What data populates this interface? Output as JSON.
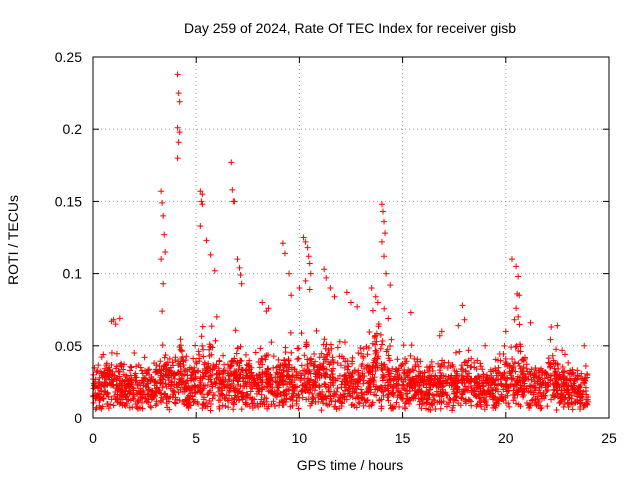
{
  "chart_data": {
    "type": "scatter",
    "title": "Day 259 of 2024, Rate Of TEC Index for receiver gisb",
    "xlabel": "GPS time / hours",
    "ylabel": "ROTI / TECUs",
    "xlim": [
      0,
      25
    ],
    "ylim": [
      0,
      0.25
    ],
    "x_ticks": [
      0,
      5,
      10,
      15,
      20,
      25
    ],
    "x_tick_labels": [
      "0",
      "5",
      "10",
      "15",
      "20",
      "25"
    ],
    "y_ticks": [
      0,
      0.05,
      0.1,
      0.15,
      0.2,
      0.25
    ],
    "y_tick_labels": [
      "0",
      "0.05",
      "0.1",
      "0.15",
      "0.2",
      "0.25"
    ],
    "grid": true,
    "marker": "+",
    "color": "#ff0000",
    "background_band": {
      "x_range": [
        0,
        24
      ],
      "baseline_range": [
        0.005,
        0.03
      ],
      "approx_points": 2600,
      "description": "dense continuous cloud of ROTI samples"
    },
    "series": [
      {
        "name": "ROTI",
        "x": [
          0.9,
          1.0,
          1.1,
          1.3,
          3.3,
          3.35,
          3.4,
          3.45,
          3.5,
          3.3,
          3.4,
          3.35,
          4.1,
          4.15,
          4.2,
          4.1,
          4.2,
          4.15,
          4.1,
          5.2,
          5.3,
          5.25,
          5.3,
          5.2,
          5.5,
          5.7,
          5.9,
          6.0,
          6.7,
          6.75,
          6.8,
          6.85,
          7.0,
          7.1,
          7.15,
          7.2,
          8.2,
          8.4,
          8.5,
          9.2,
          9.3,
          9.5,
          9.6,
          10.0,
          10.2,
          10.3,
          10.4,
          10.45,
          10.5,
          10.55,
          10.3,
          10.5,
          11.2,
          11.3,
          11.5,
          11.7,
          12.3,
          12.5,
          12.8,
          13.5,
          13.7,
          13.8,
          14.0,
          14.05,
          14.1,
          14.15,
          14.0,
          14.1,
          14.2,
          14.4,
          15.4,
          16.8,
          16.9,
          17.7,
          17.9,
          18.0,
          19.0,
          20.0,
          20.3,
          20.5,
          20.6,
          20.55,
          20.65,
          20.5,
          20.6,
          21.2,
          22.2,
          22.5,
          23.8,
          2.0,
          2.5,
          0.5
        ],
        "y": [
          0.067,
          0.068,
          0.065,
          0.069,
          0.157,
          0.149,
          0.14,
          0.127,
          0.115,
          0.11,
          0.093,
          0.074,
          0.238,
          0.225,
          0.219,
          0.201,
          0.198,
          0.191,
          0.18,
          0.157,
          0.155,
          0.15,
          0.148,
          0.133,
          0.123,
          0.113,
          0.102,
          0.07,
          0.177,
          0.158,
          0.15,
          0.15,
          0.11,
          0.104,
          0.099,
          0.093,
          0.08,
          0.074,
          0.076,
          0.121,
          0.114,
          0.1,
          0.085,
          0.09,
          0.125,
          0.122,
          0.118,
          0.112,
          0.107,
          0.1,
          0.095,
          0.089,
          0.103,
          0.097,
          0.09,
          0.084,
          0.087,
          0.08,
          0.077,
          0.09,
          0.084,
          0.08,
          0.148,
          0.143,
          0.136,
          0.128,
          0.122,
          0.112,
          0.1,
          0.092,
          0.073,
          0.057,
          0.06,
          0.064,
          0.078,
          0.068,
          0.05,
          0.06,
          0.11,
          0.105,
          0.098,
          0.086,
          0.085,
          0.076,
          0.07,
          0.066,
          0.063,
          0.064,
          0.05,
          0.045,
          0.042,
          0.044
        ]
      }
    ]
  }
}
